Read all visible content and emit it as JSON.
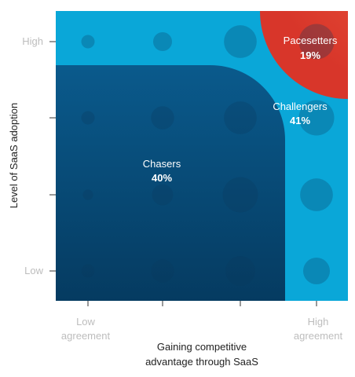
{
  "chart_data": {
    "type": "scatter",
    "subtype": "bubble-matrix-with-segments",
    "x_axis": {
      "title": "Gaining competitive advantage through SaaS",
      "title_lines": [
        "Gaining competitive",
        "advantage through SaaS"
      ],
      "levels": 4,
      "tick_labels": [
        [
          "Low",
          "agreement"
        ],
        [
          "",
          ""
        ],
        [
          "",
          ""
        ],
        [
          "High",
          "agreement"
        ]
      ]
    },
    "y_axis": {
      "title": "Level of SaaS adoption",
      "levels": 4,
      "tick_labels": [
        "Low",
        "",
        "",
        "High"
      ]
    },
    "bubbles": [
      {
        "x": 1,
        "y": 4,
        "size": 1
      },
      {
        "x": 2,
        "y": 4,
        "size": 2
      },
      {
        "x": 3,
        "y": 4,
        "size": 6
      },
      {
        "x": 4,
        "y": 4,
        "size": 7
      },
      {
        "x": 1,
        "y": 3,
        "size": 1
      },
      {
        "x": 2,
        "y": 3,
        "size": 3
      },
      {
        "x": 3,
        "y": 3,
        "size": 6
      },
      {
        "x": 4,
        "y": 3,
        "size": 7
      },
      {
        "x": 1,
        "y": 2,
        "size": 0.6
      },
      {
        "x": 2,
        "y": 2,
        "size": 2.5
      },
      {
        "x": 3,
        "y": 2,
        "size": 7
      },
      {
        "x": 4,
        "y": 2,
        "size": 6
      },
      {
        "x": 1,
        "y": 1,
        "size": 1
      },
      {
        "x": 2,
        "y": 1,
        "size": 3
      },
      {
        "x": 3,
        "y": 1,
        "size": 5
      },
      {
        "x": 4,
        "y": 1,
        "size": 4
      }
    ],
    "segments": [
      {
        "name": "Chasers",
        "percent": "40%",
        "color": "#06507f"
      },
      {
        "name": "Challengers",
        "percent": "41%",
        "color": "#0aa7d8"
      },
      {
        "name": "Pacesetters",
        "percent": "19%",
        "color": "#e5392a"
      }
    ],
    "bubble_color": "#0b3a5e"
  }
}
